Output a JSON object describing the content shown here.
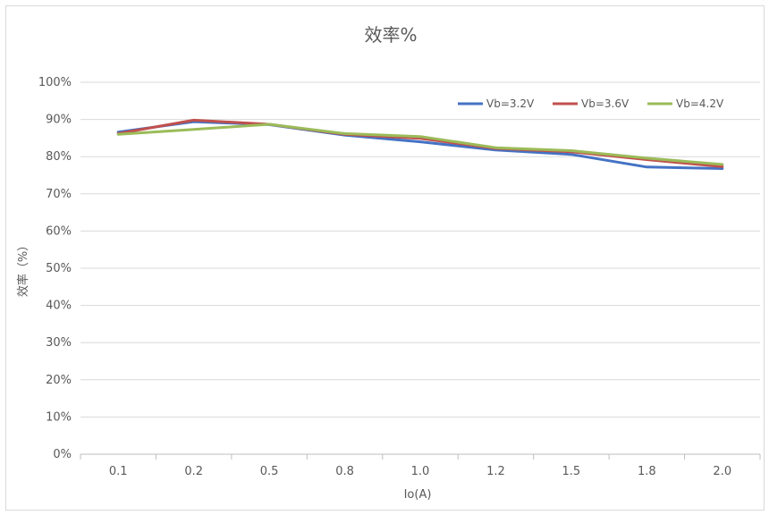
{
  "chart_data": {
    "type": "line",
    "title": "效率%",
    "xlabel": "Io(A)",
    "ylabel": "效率（%）",
    "categories": [
      "0.1",
      "0.2",
      "0.5",
      "0.8",
      "1.0",
      "1.2",
      "1.5",
      "1.8",
      "2.0"
    ],
    "y_ticks": [
      "0%",
      "10%",
      "20%",
      "30%",
      "40%",
      "50%",
      "60%",
      "70%",
      "80%",
      "90%",
      "100%"
    ],
    "ylim": [
      0,
      100
    ],
    "grid": "horizontal",
    "legend_position": "top-right",
    "series": [
      {
        "name": "Vb=3.2V",
        "color": "#4472c4",
        "values": [
          86.6,
          89.4,
          88.6,
          85.8,
          84.0,
          81.8,
          80.6,
          77.2,
          76.8
        ]
      },
      {
        "name": "Vb=3.6V",
        "color": "#c0504d",
        "values": [
          86.2,
          89.8,
          88.7,
          86.0,
          84.9,
          82.2,
          81.3,
          79.2,
          77.3
        ]
      },
      {
        "name": "Vb=4.2V",
        "color": "#9bbb59",
        "values": [
          86.0,
          87.3,
          88.7,
          86.2,
          85.4,
          82.4,
          81.6,
          79.6,
          77.9
        ]
      }
    ]
  }
}
